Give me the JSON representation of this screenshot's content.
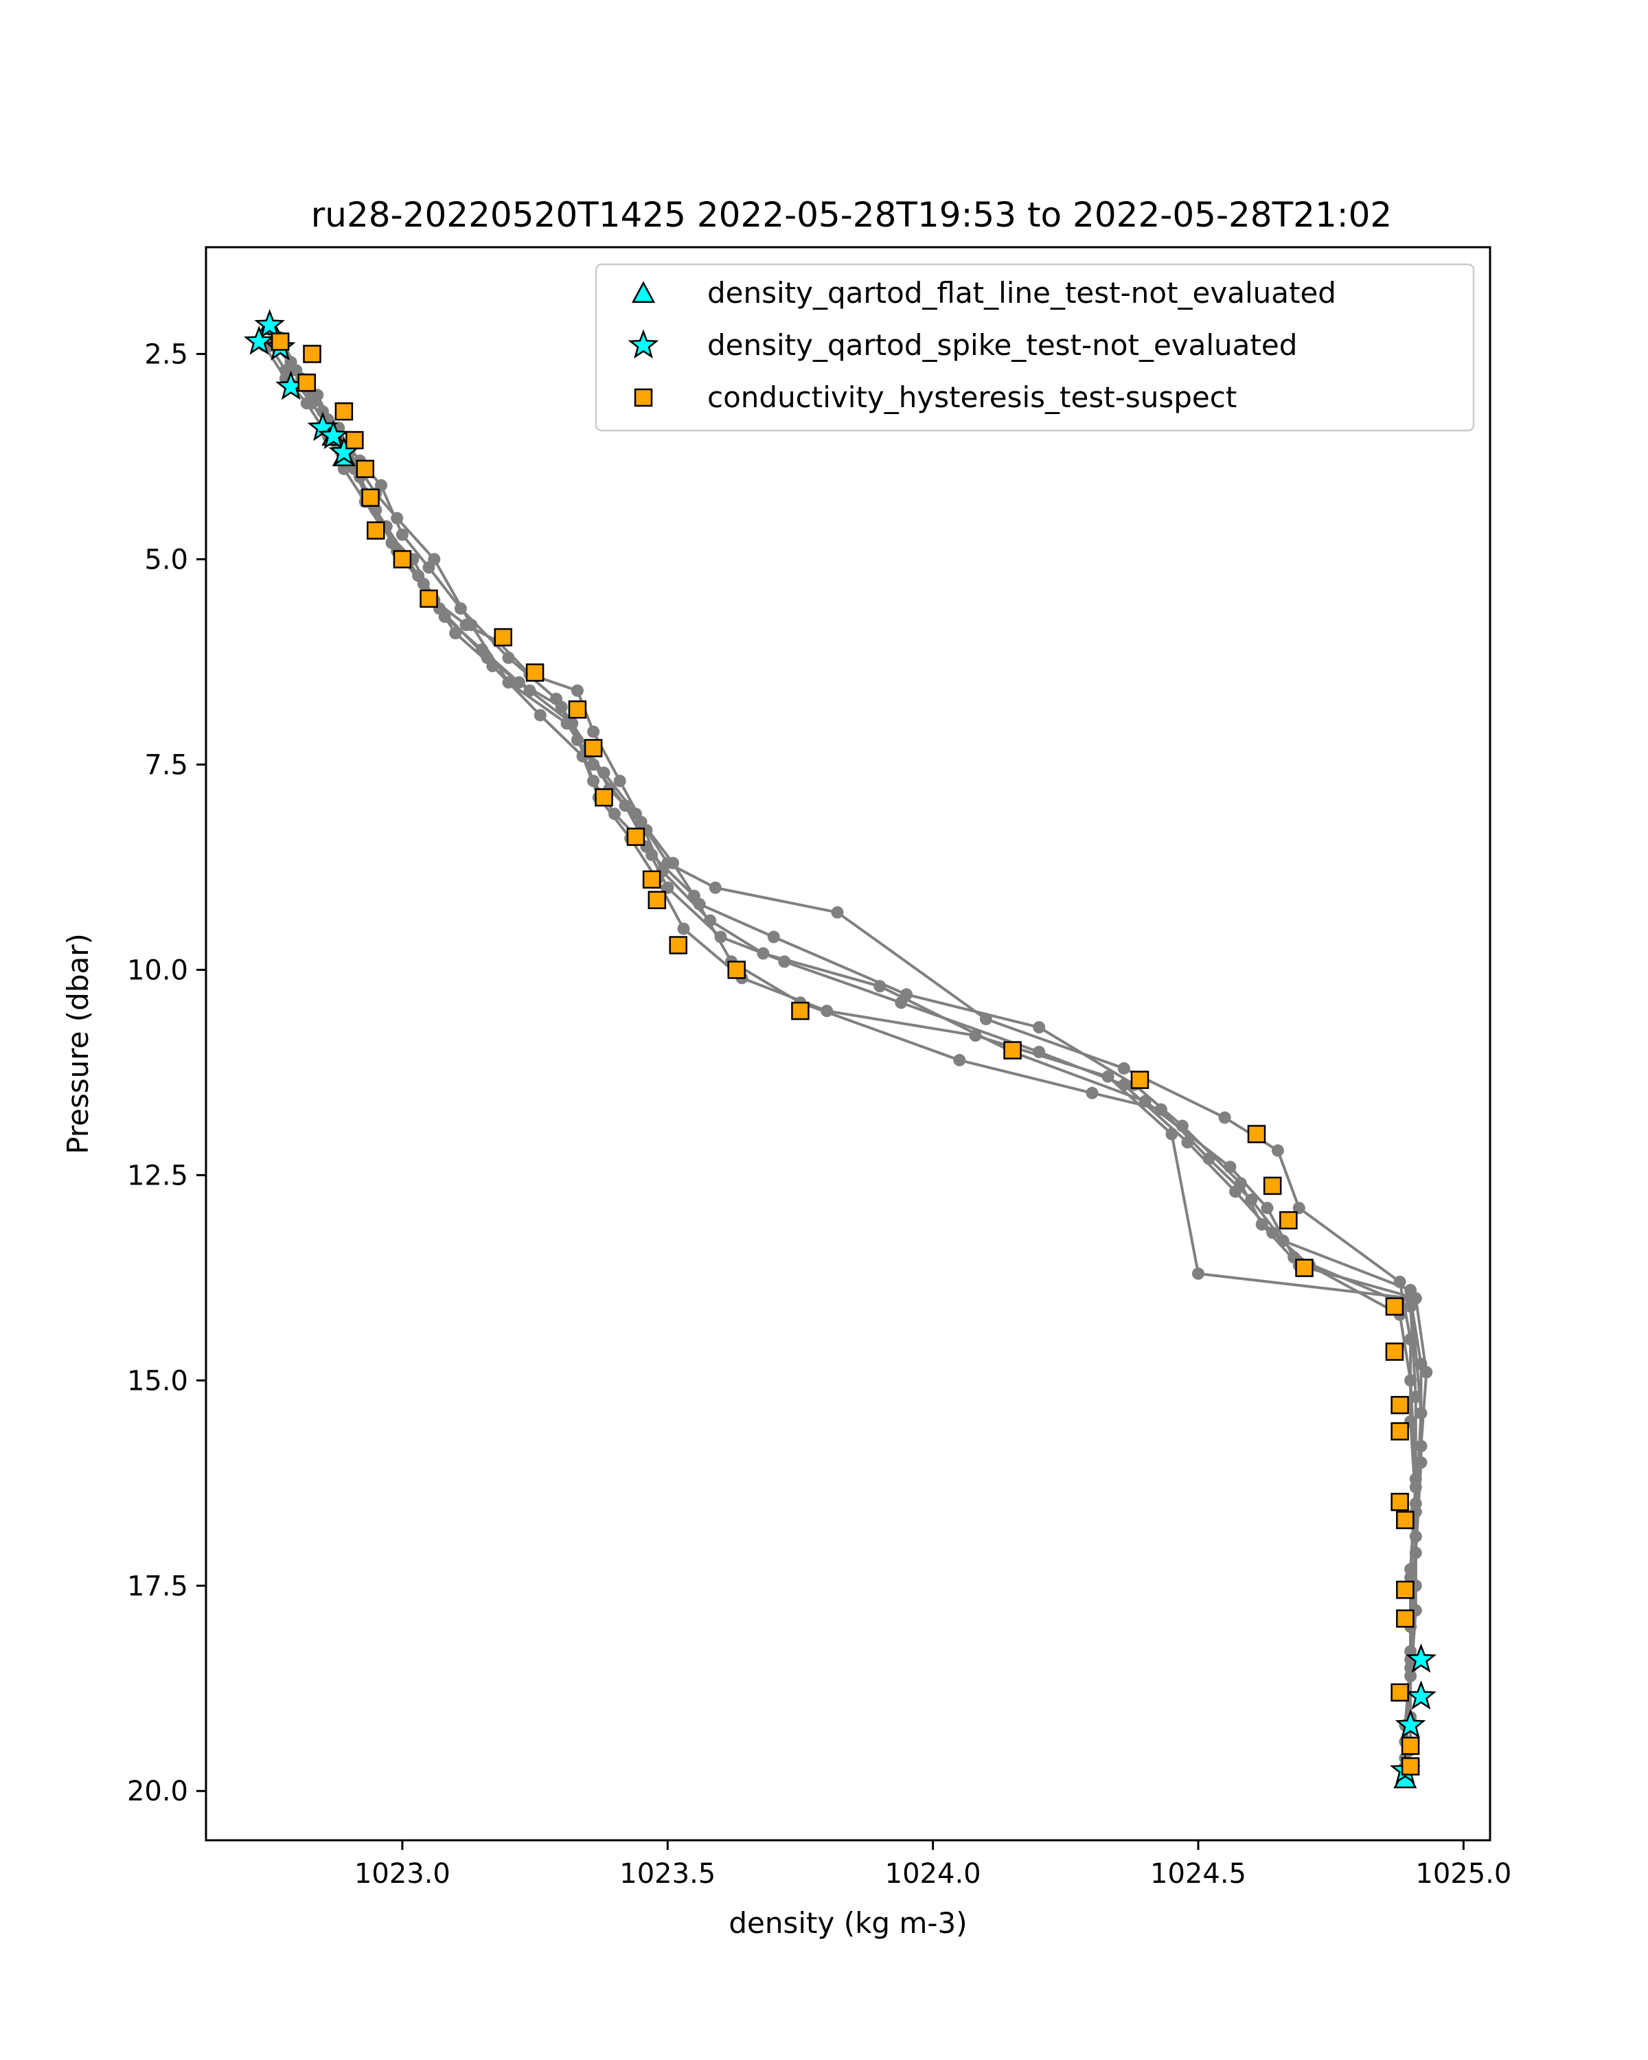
{
  "chart_data": {
    "type": "scatter",
    "title": "ru28-20220520T1425 2022-05-28T19:53 to 2022-05-28T21:02",
    "xlabel": "density (kg m-3)",
    "ylabel": "Pressure (dbar)",
    "xlim": [
      1022.63,
      1025.05
    ],
    "ylim": [
      20.6,
      1.2
    ],
    "y_inverted": true,
    "xticks": [
      1023.0,
      1023.5,
      1024.0,
      1024.5,
      1025.0
    ],
    "xtick_labels": [
      "1023.0",
      "1023.5",
      "1024.0",
      "1024.5",
      "1025.0"
    ],
    "yticks": [
      2.5,
      5.0,
      7.5,
      10.0,
      12.5,
      15.0,
      17.5,
      20.0
    ],
    "ytick_labels": [
      "2.5",
      "5.0",
      "7.5",
      "10.0",
      "12.5",
      "15.0",
      "17.5",
      "20.0"
    ],
    "grid": false,
    "legend_position": "top-right",
    "colors": {
      "profile_line": "#808080",
      "flat_line_marker": "#00ffff",
      "spike_marker": "#00ffff",
      "hysteresis_marker": "#ffa500",
      "marker_edge": "#000000"
    },
    "profiles": [
      {
        "x": [
          1022.76,
          1022.79,
          1022.82,
          1022.86,
          1022.89,
          1022.92,
          1022.95,
          1022.99,
          1023.06,
          1023.12,
          1023.18,
          1023.24,
          1023.33,
          1023.36,
          1023.41,
          1023.46,
          1023.5,
          1023.59,
          1023.82,
          1024.1,
          1024.36,
          1024.55,
          1024.65,
          1024.69,
          1024.88,
          1024.9,
          1024.9,
          1024.91,
          1024.91,
          1024.9,
          1024.89,
          1024.89
        ],
        "y": [
          2.3,
          2.6,
          2.9,
          3.3,
          3.7,
          4.0,
          4.4,
          4.9,
          5.5,
          5.8,
          6.0,
          6.4,
          6.6,
          7.1,
          7.7,
          8.3,
          8.7,
          9.0,
          9.3,
          10.6,
          11.2,
          11.8,
          12.2,
          12.9,
          13.8,
          14.5,
          15.5,
          16.5,
          17.5,
          18.4,
          19.2,
          19.8
        ]
      },
      {
        "x": [
          1022.75,
          1022.78,
          1022.83,
          1022.87,
          1022.9,
          1022.93,
          1022.97,
          1023.03,
          1023.08,
          1023.15,
          1023.22,
          1023.3,
          1023.35,
          1023.39,
          1023.45,
          1023.49,
          1023.58,
          1023.68,
          1023.9,
          1024.15,
          1024.4,
          1024.56,
          1024.63,
          1024.68,
          1024.9,
          1024.91,
          1024.91,
          1024.9,
          1024.9,
          1024.9
        ],
        "y": [
          2.4,
          2.7,
          3.1,
          3.5,
          3.8,
          4.2,
          4.6,
          5.2,
          5.7,
          6.1,
          6.5,
          6.8,
          7.3,
          7.8,
          8.2,
          8.8,
          9.4,
          9.8,
          10.2,
          11.0,
          11.6,
          12.4,
          12.9,
          13.5,
          14.1,
          15.2,
          16.3,
          17.4,
          18.6,
          19.5
        ]
      },
      {
        "x": [
          1022.77,
          1022.81,
          1022.85,
          1022.88,
          1022.91,
          1022.94,
          1022.98,
          1023.04,
          1023.1,
          1023.17,
          1023.26,
          1023.34,
          1023.37,
          1023.43,
          1023.48,
          1023.53,
          1023.64,
          1023.8,
          1024.08,
          1024.33,
          1024.45,
          1024.5,
          1024.9,
          1024.92,
          1024.92,
          1024.91,
          1024.9,
          1024.89
        ],
        "y": [
          2.3,
          2.8,
          3.2,
          3.6,
          3.9,
          4.3,
          4.8,
          5.3,
          5.9,
          6.3,
          6.9,
          7.4,
          7.9,
          8.4,
          8.9,
          9.5,
          10.1,
          10.5,
          10.8,
          11.3,
          12.0,
          13.7,
          14.0,
          14.8,
          16.0,
          17.1,
          18.3,
          19.4
        ]
      },
      {
        "x": [
          1022.76,
          1022.8,
          1022.84,
          1022.87,
          1022.92,
          1022.96,
          1023.0,
          1023.05,
          1023.11,
          1023.2,
          1023.29,
          1023.33,
          1023.38,
          1023.44,
          1023.51,
          1023.56,
          1023.7,
          1023.95,
          1024.2,
          1024.38,
          1024.47,
          1024.58,
          1024.62,
          1024.69,
          1024.91,
          1024.93,
          1024.92,
          1024.91,
          1024.9,
          1024.9
        ],
        "y": [
          2.4,
          2.7,
          3.0,
          3.4,
          3.8,
          4.1,
          4.7,
          5.1,
          5.6,
          6.2,
          6.7,
          7.2,
          7.6,
          8.1,
          8.7,
          9.2,
          9.6,
          10.3,
          10.7,
          11.4,
          11.9,
          12.6,
          13.1,
          13.6,
          14.0,
          14.9,
          15.8,
          16.9,
          18.0,
          19.1
        ]
      },
      {
        "x": [
          1022.75,
          1022.79,
          1022.83,
          1022.88,
          1022.9,
          1022.95,
          1022.99,
          1023.06,
          1023.13,
          1023.2,
          1023.31,
          1023.36,
          1023.42,
          1023.47,
          1023.55,
          1023.62,
          1023.75,
          1024.05,
          1024.3,
          1024.43,
          1024.52,
          1024.6,
          1024.66,
          1024.9,
          1024.92,
          1024.91,
          1024.91,
          1024.89
        ],
        "y": [
          2.2,
          2.6,
          3.0,
          3.4,
          3.7,
          4.2,
          4.5,
          5.0,
          5.8,
          6.5,
          7.0,
          7.5,
          8.0,
          8.6,
          9.1,
          9.9,
          10.4,
          11.1,
          11.5,
          11.7,
          12.3,
          12.8,
          13.3,
          13.9,
          15.4,
          16.6,
          17.8,
          19.6
        ]
      },
      {
        "x": [
          1022.74,
          1022.78,
          1022.82,
          1022.86,
          1022.89,
          1022.93,
          1022.96,
          1023.02,
          1023.07,
          1023.16,
          1023.24,
          1023.32,
          1023.36,
          1023.4,
          1023.46,
          1023.5,
          1023.6,
          1023.72,
          1023.94,
          1024.2,
          1024.36,
          1024.48,
          1024.57,
          1024.64,
          1024.71,
          1024.88,
          1024.9,
          1024.91,
          1024.9,
          1024.9,
          1024.89
        ],
        "y": [
          2.4,
          2.8,
          3.1,
          3.5,
          3.9,
          4.3,
          4.6,
          5.0,
          5.6,
          6.2,
          6.6,
          7.0,
          7.7,
          8.1,
          8.5,
          9.0,
          9.6,
          9.9,
          10.4,
          11.0,
          11.4,
          12.1,
          12.7,
          13.2,
          13.6,
          14.2,
          15.0,
          16.2,
          17.3,
          18.5,
          19.7
        ]
      }
    ],
    "series": [
      {
        "name": "density_qartod_flat_line_test-not_evaluated",
        "marker": "triangle",
        "x": [
          1022.75,
          1022.87,
          1022.89,
          1024.89
        ],
        "y": [
          2.15,
          3.5,
          3.75,
          19.85
        ]
      },
      {
        "name": "density_qartod_spike_test-not_evaluated",
        "marker": "star",
        "x": [
          1022.75,
          1022.73,
          1022.77,
          1022.79,
          1022.85,
          1022.87,
          1022.89,
          1024.92,
          1024.92,
          1024.9,
          1024.89
        ],
        "y": [
          2.15,
          2.35,
          2.42,
          2.9,
          3.4,
          3.5,
          3.7,
          18.4,
          18.85,
          19.2,
          19.75
        ]
      },
      {
        "name": "conductivity_hysteresis_test-suspect",
        "marker": "square",
        "x": [
          1022.77,
          1022.83,
          1022.82,
          1022.89,
          1022.91,
          1022.93,
          1022.94,
          1022.95,
          1023.0,
          1023.05,
          1023.19,
          1023.25,
          1023.33,
          1023.36,
          1023.38,
          1023.44,
          1023.47,
          1023.48,
          1023.52,
          1023.63,
          1023.75,
          1024.15,
          1024.39,
          1024.61,
          1024.64,
          1024.67,
          1024.7,
          1024.87,
          1024.87,
          1024.88,
          1024.88,
          1024.88,
          1024.89,
          1024.89,
          1024.89,
          1024.88,
          1024.9,
          1024.9
        ],
        "y": [
          2.35,
          2.5,
          2.85,
          3.2,
          3.55,
          3.9,
          4.25,
          4.65,
          5.0,
          5.48,
          5.95,
          6.38,
          6.83,
          7.3,
          7.9,
          8.38,
          8.9,
          9.15,
          9.7,
          10.0,
          10.5,
          10.98,
          11.34,
          12.0,
          12.63,
          13.05,
          13.63,
          14.1,
          14.65,
          15.3,
          15.62,
          16.48,
          16.7,
          17.55,
          17.9,
          18.8,
          19.45,
          19.7
        ]
      }
    ]
  }
}
